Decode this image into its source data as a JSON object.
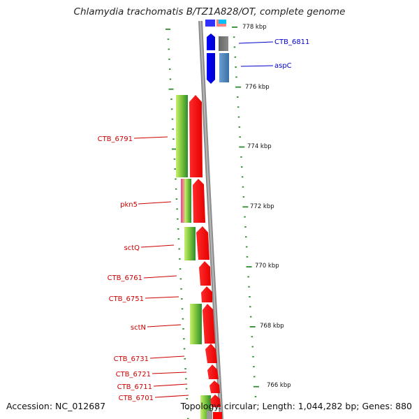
{
  "title": "Chlamydia trachomatis B/TZ1A828/OT, complete genome",
  "footer": {
    "accession": "Accession: NC_012687",
    "summary": "Topology: circular; Length: 1,044,282 bp; Genes: 880"
  },
  "colors": {
    "backbone": "#8c8c8c",
    "forward_gene": "#ff0000",
    "reverse_gene_fill": "#0000ee",
    "reverse_gene_alt": "#3f7fbf",
    "label_left": "#cc0000",
    "label_right": "#0000cc",
    "tick_green": "#2e8b2e",
    "dark_green": "#2e8b2e",
    "light_green": "#a9e34b",
    "pink_feature": "#ff3399"
  },
  "scale_labels": [
    "778 kbp",
    "776 kbp",
    "774 kbp",
    "772 kbp",
    "770 kbp",
    "768 kbp",
    "766 kbp"
  ],
  "gene_labels_left": [
    "CTB_6791",
    "pkn5",
    "sctQ",
    "CTB_6761",
    "CTB_6751",
    "sctN",
    "CTB_6731",
    "CTB_6721",
    "CTB_6711",
    "CTB_6701"
  ],
  "gene_labels_right": [
    "CTB_6811",
    "aspC"
  ]
}
